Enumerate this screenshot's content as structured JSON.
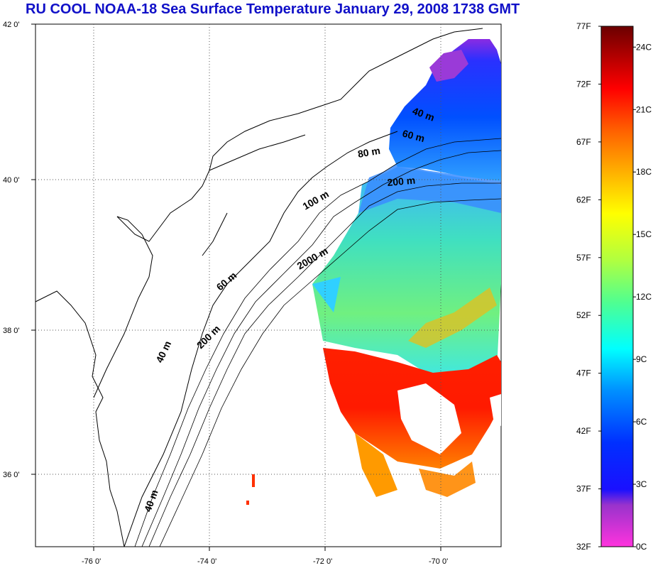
{
  "title": "RU COOL  NOAA-18 Sea Surface Temperature January 29, 2008 1738 GMT",
  "map": {
    "lat_labels": [
      "42 0'",
      "40 0'",
      "38 0'",
      "36 0'"
    ],
    "lon_labels": [
      "-76 0'",
      "-74 0'",
      "-72 0'",
      "-70 0'"
    ],
    "contour_labels": [
      "40 m",
      "60 m",
      "80 m",
      "200 m",
      "100 m",
      "2000 m",
      "60 m",
      "200 m",
      "40 m",
      "40 m"
    ]
  },
  "colorbar": {
    "f_labels": [
      "77F",
      "72F",
      "67F",
      "62F",
      "57F",
      "52F",
      "47F",
      "42F",
      "37F",
      "32F"
    ],
    "c_labels": [
      "24C",
      "21C",
      "18C",
      "15C",
      "12C",
      "9C",
      "6C",
      "3C",
      "0C"
    ],
    "colors": [
      "#6b0000",
      "#ff0000",
      "#ff7a00",
      "#ffff00",
      "#7fff7f",
      "#00ffff",
      "#0060ff",
      "#0000ff",
      "#9933cc",
      "#ff33cc"
    ]
  }
}
